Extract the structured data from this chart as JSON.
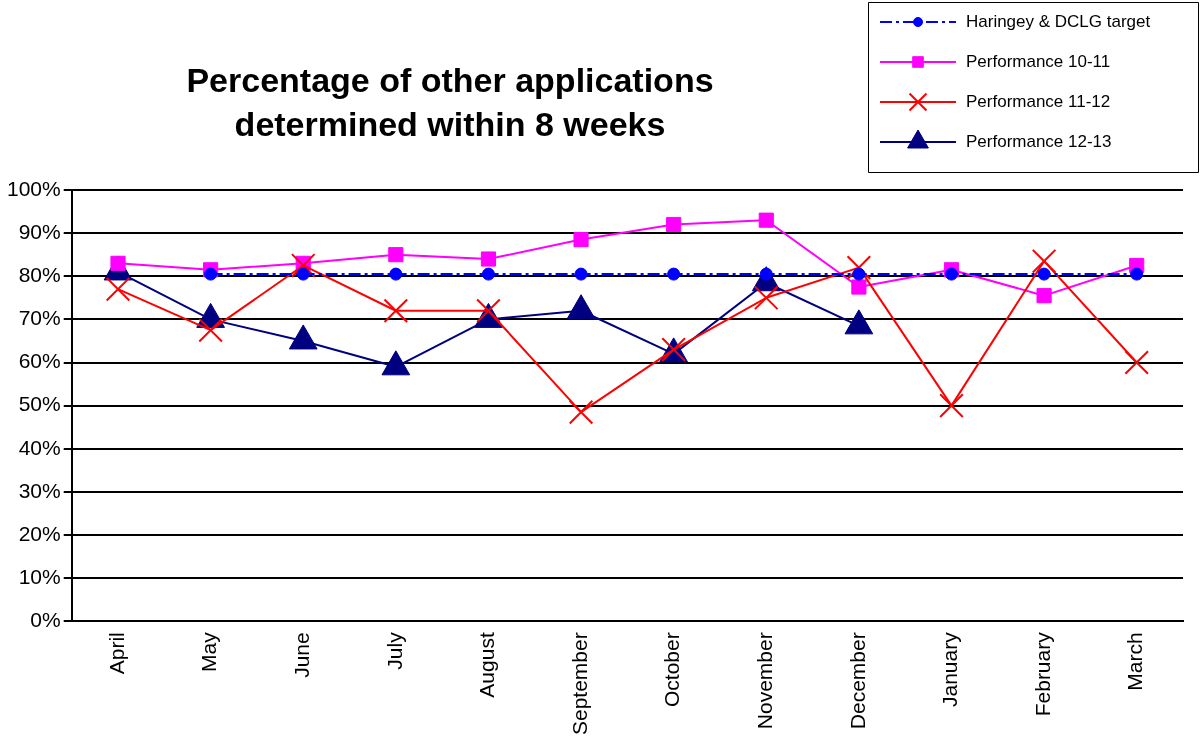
{
  "chart_data": {
    "type": "line",
    "title": "Percentage of other applications determined within 8 weeks",
    "categories": [
      "April",
      "May",
      "June",
      "July",
      "August",
      "September",
      "October",
      "November",
      "December",
      "January",
      "February",
      "March"
    ],
    "series": [
      {
        "name": "Haringey & DCLG target",
        "color": "#0000ff",
        "marker": "circle",
        "line_style": "dashed",
        "values": [
          null,
          80.5,
          80.5,
          80.5,
          80.5,
          80.5,
          80.5,
          80.5,
          80.5,
          80.5,
          80.5,
          80.5
        ]
      },
      {
        "name": "Performance 10-11",
        "color": "#ff00ff",
        "marker": "square",
        "values": [
          83,
          81.5,
          83,
          85,
          84,
          88.5,
          92,
          93,
          77.5,
          81.5,
          75.5,
          82.5
        ]
      },
      {
        "name": "Performance 11-12",
        "color": "#ff0000",
        "marker": "cross",
        "values": [
          77,
          67.5,
          82.5,
          72,
          72,
          48.5,
          63,
          75,
          82,
          50,
          83.5,
          60
        ]
      },
      {
        "name": "Performance 12-13",
        "color": "#000080",
        "marker": "triangle",
        "values": [
          81,
          70,
          65,
          59,
          70,
          72,
          62,
          78.5,
          68.5,
          null,
          null,
          null
        ]
      }
    ],
    "ylim": [
      0,
      100
    ],
    "yticks": [
      {
        "value": 0,
        "label": "0%"
      },
      {
        "value": 10,
        "label": "10%"
      },
      {
        "value": 20,
        "label": "20%"
      },
      {
        "value": 30,
        "label": "30%"
      },
      {
        "value": 40,
        "label": "40%"
      },
      {
        "value": 50,
        "label": "50%"
      },
      {
        "value": 60,
        "label": "60%"
      },
      {
        "value": 70,
        "label": "70%"
      },
      {
        "value": 80,
        "label": "80%"
      },
      {
        "value": 90,
        "label": "90%"
      },
      {
        "value": 100,
        "label": "100%"
      }
    ],
    "grid": "y",
    "legend": "top right"
  }
}
